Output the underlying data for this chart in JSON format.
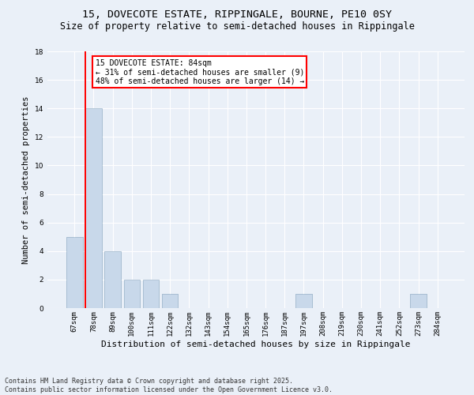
{
  "title1": "15, DOVECOTE ESTATE, RIPPINGALE, BOURNE, PE10 0SY",
  "title2": "Size of property relative to semi-detached houses in Rippingale",
  "xlabel": "Distribution of semi-detached houses by size in Rippingale",
  "ylabel": "Number of semi-detached properties",
  "categories": [
    "67sqm",
    "78sqm",
    "89sqm",
    "100sqm",
    "111sqm",
    "122sqm",
    "132sqm",
    "143sqm",
    "154sqm",
    "165sqm",
    "176sqm",
    "187sqm",
    "197sqm",
    "208sqm",
    "219sqm",
    "230sqm",
    "241sqm",
    "252sqm",
    "273sqm",
    "284sqm"
  ],
  "values": [
    5,
    14,
    4,
    2,
    2,
    1,
    0,
    0,
    0,
    0,
    0,
    0,
    1,
    0,
    0,
    0,
    0,
    0,
    1,
    0
  ],
  "bar_color": "#c8d8ea",
  "bar_edge_color": "#a0b8cc",
  "red_line_bar_index": 1,
  "annotation_text": "15 DOVECOTE ESTATE: 84sqm\n← 31% of semi-detached houses are smaller (9)\n48% of semi-detached houses are larger (14) →",
  "annotation_box_color": "white",
  "annotation_box_edge_color": "red",
  "ylim": [
    0,
    18
  ],
  "yticks": [
    0,
    2,
    4,
    6,
    8,
    10,
    12,
    14,
    16,
    18
  ],
  "footer": "Contains HM Land Registry data © Crown copyright and database right 2025.\nContains public sector information licensed under the Open Government Licence v3.0.",
  "bg_color": "#eaf0f8",
  "grid_color": "white",
  "title_fontsize": 9.5,
  "subtitle_fontsize": 8.5,
  "ylabel_fontsize": 7.5,
  "xlabel_fontsize": 8,
  "tick_fontsize": 6.5,
  "annotation_fontsize": 7,
  "footer_fontsize": 6
}
